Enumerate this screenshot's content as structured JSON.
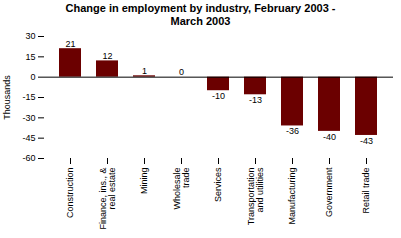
{
  "chart_data": {
    "type": "bar",
    "title": "Change in employment by industry, February 2003 -\nMarch 2003",
    "categories": [
      "Construction",
      "Finance, ins., &\nreal estate",
      "Mining",
      "Wholesale\ntrade",
      "Services",
      "Transportation\nand utilities",
      "Manufacturing",
      "Government",
      "Retail trade"
    ],
    "values": [
      21,
      12,
      1,
      0,
      -10,
      -13,
      -36,
      -40,
      -43
    ],
    "color": "#6B0000",
    "ylabel": "Thousands",
    "ylim": [
      -60,
      30
    ],
    "yticks": [
      -60,
      -45,
      -30,
      -15,
      0,
      15,
      30
    ],
    "grid": false,
    "data_labels": true
  }
}
